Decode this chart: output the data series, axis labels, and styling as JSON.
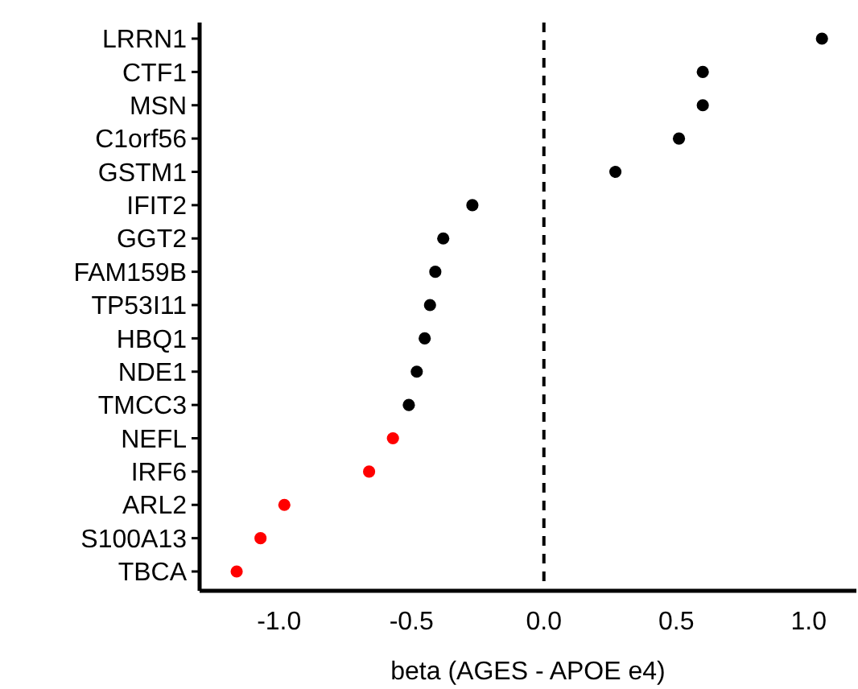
{
  "chart_data": {
    "type": "scatter",
    "orientation": "horizontal",
    "xlabel": "beta (AGES - APOE e4)",
    "categories": [
      "LRRN1",
      "CTF1",
      "MSN",
      "C1orf56",
      "GSTM1",
      "IFIT2",
      "GGT2",
      "FAM159B",
      "TP53I11",
      "HBQ1",
      "NDE1",
      "TMCC3",
      "NEFL",
      "IRF6",
      "ARL2",
      "S100A13",
      "TBCA"
    ],
    "values": [
      1.05,
      0.6,
      0.6,
      0.51,
      0.27,
      -0.27,
      -0.38,
      -0.41,
      -0.43,
      -0.45,
      -0.48,
      -0.51,
      -0.57,
      -0.66,
      -0.98,
      -1.07,
      -1.16
    ],
    "colors": [
      "#000000",
      "#000000",
      "#000000",
      "#000000",
      "#000000",
      "#000000",
      "#000000",
      "#000000",
      "#000000",
      "#000000",
      "#000000",
      "#000000",
      "#ff0000",
      "#ff0000",
      "#ff0000",
      "#ff0000",
      "#ff0000"
    ],
    "xlim": [
      -1.3,
      1.18
    ],
    "xticks": [
      {
        "value": -1,
        "label": "-1.0"
      },
      {
        "value": -0.5,
        "label": "-0.5"
      },
      {
        "value": 0,
        "label": "0.0"
      },
      {
        "value": 0.5,
        "label": "0.5"
      },
      {
        "value": 1,
        "label": "1.0"
      }
    ],
    "ref_lines": [
      {
        "axis": "x",
        "value": 0,
        "color": "#000000",
        "line_style": "dashed"
      }
    ],
    "marker": "circle"
  }
}
